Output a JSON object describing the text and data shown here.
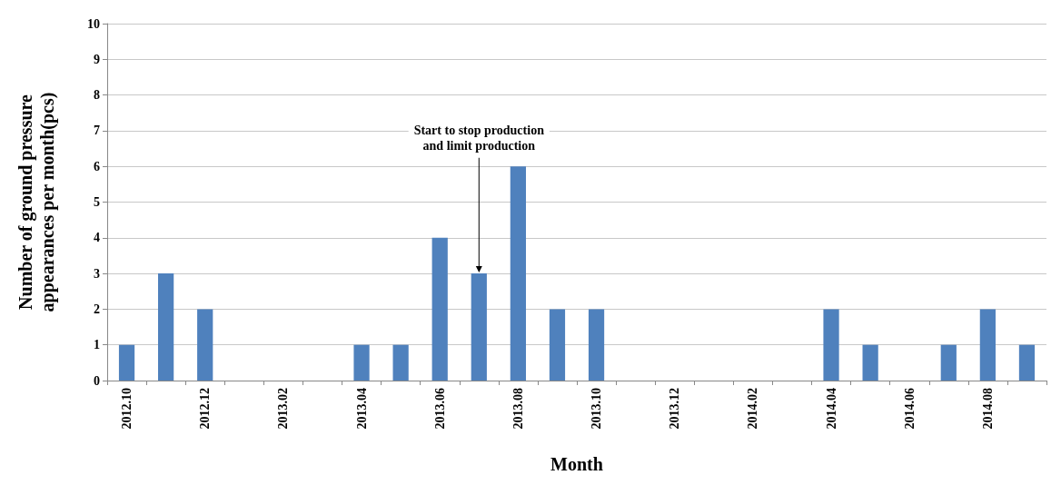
{
  "chart_data": {
    "type": "bar",
    "xlabel": "Month",
    "ylabel": "Number of ground pressure appearances per month(pcs)",
    "categories": [
      "2012.10",
      null,
      "2012.12",
      null,
      "2013.02",
      null,
      "2013.04",
      null,
      "2013.06",
      null,
      "2013.08",
      null,
      "2013.10",
      null,
      "2013.12",
      null,
      "2014.02",
      null,
      "2014.04",
      null,
      "2014.06",
      null,
      "2014.08",
      null
    ],
    "values": [
      1,
      3,
      2,
      0,
      0,
      0,
      1,
      1,
      4,
      3,
      6,
      2,
      2,
      0,
      0,
      0,
      0,
      0,
      2,
      1,
      0,
      1,
      2,
      1
    ],
    "color": "#4f81bd",
    "ylim": [
      0,
      10
    ],
    "yticks": [
      0,
      1,
      2,
      3,
      4,
      5,
      6,
      7,
      8,
      9,
      10
    ],
    "grid": "y",
    "annotations": [
      {
        "text": "Start to stop production and limit production",
        "y": 3
      }
    ]
  }
}
